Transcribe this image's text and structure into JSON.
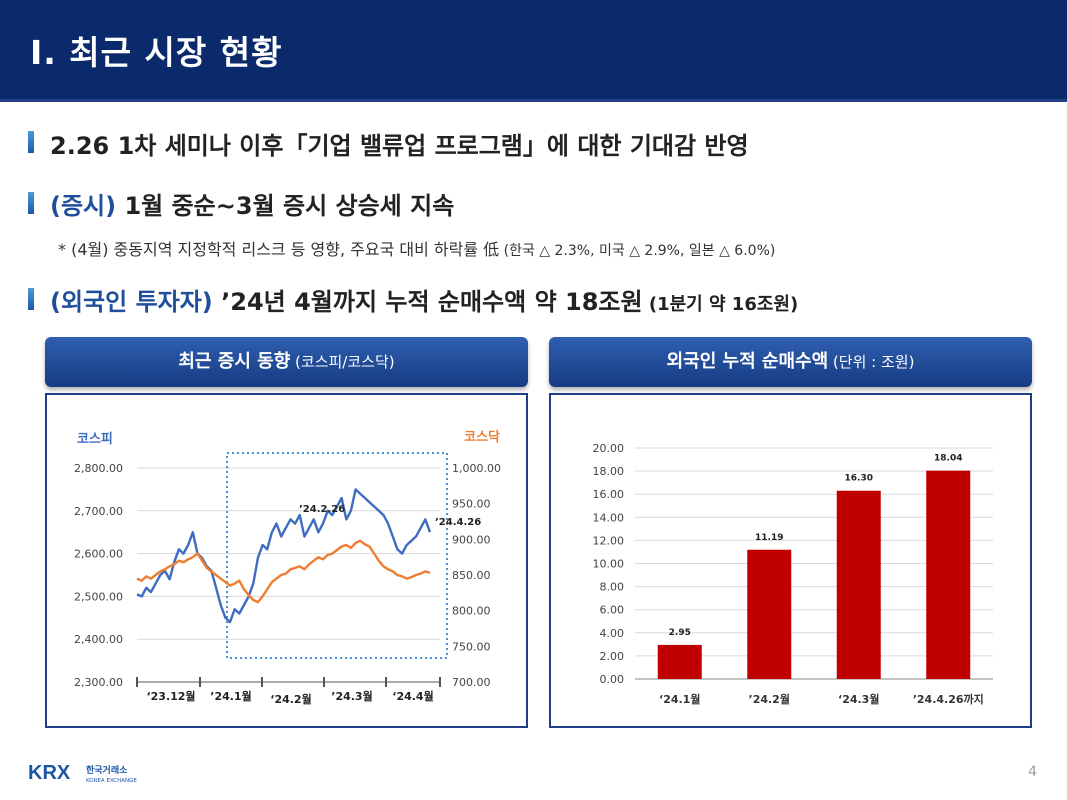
{
  "header": {
    "title": "Ⅰ. 최근 시장 현황"
  },
  "points": {
    "p1": "2.26 1차 세미나 이후「기업 밸류업 프로그램」에 대한 기대감 반영",
    "p2_hl": "(증시)",
    "p2_rest": " 1월 중순~3월 증시 상승세 지속",
    "note_main": "* (4월) 중동지역 지정학적 리스크 등 영향, 주요국 대비 하락률 低",
    "note_detail": " (한국 △ 2.3%, 미국 △ 2.9%, 일본 △ 6.0%)",
    "p3_hl": "(외국인 투자자)",
    "p3_rest": " ’24년 4월까지 누적 순매수액 약 18조원",
    "p3_small": " (1분기 약 16조원)"
  },
  "left_panel": {
    "title": "최근 증시 동향",
    "subtitle": " (코스피/코스닥)"
  },
  "right_panel": {
    "title": "외국인 누적 순매수액",
    "subtitle": " (단위 : 조원)"
  },
  "colors": {
    "kospi": "#3d6cc0",
    "kosdaq": "#ed7d31",
    "bar": "#c00000",
    "header_bg": "#0b2a6b"
  },
  "chart_data": [
    {
      "type": "line",
      "left_axis_label": "코스피",
      "right_axis_label": "코스닥",
      "left_ticks": [
        "2,800.00",
        "2,700.00",
        "2,600.00",
        "2,500.00",
        "2,400.00",
        "2,300.00"
      ],
      "right_ticks": [
        "1,000.00",
        "950.00",
        "900.00",
        "850.00",
        "800.00",
        "750.00",
        "700.00"
      ],
      "ylim_left": [
        2300,
        2800
      ],
      "ylim_right": [
        700,
        1000
      ],
      "x_ticks": [
        "‘23.12월",
        "’24.1월",
        "‘24.2월",
        "’24.3월",
        "‘24.4월"
      ],
      "annotations": [
        "’24.2.26",
        "’24.4.26"
      ],
      "series": [
        {
          "name": "코스피",
          "axis": "left",
          "values": [
            2505,
            2500,
            2520,
            2510,
            2530,
            2550,
            2560,
            2540,
            2580,
            2610,
            2600,
            2620,
            2650,
            2600,
            2590,
            2570,
            2560,
            2520,
            2480,
            2450,
            2440,
            2470,
            2460,
            2480,
            2500,
            2530,
            2590,
            2620,
            2610,
            2650,
            2670,
            2640,
            2660,
            2680,
            2670,
            2690,
            2640,
            2660,
            2680,
            2650,
            2670,
            2700,
            2690,
            2710,
            2730,
            2680,
            2700,
            2750,
            2740,
            2730,
            2720,
            2710,
            2700,
            2690,
            2670,
            2640,
            2610,
            2600,
            2620,
            2630,
            2640,
            2660,
            2680,
            2650
          ]
        },
        {
          "name": "코스닥",
          "axis": "right",
          "values": [
            845,
            842,
            848,
            845,
            850,
            855,
            858,
            862,
            865,
            870,
            868,
            872,
            875,
            880,
            870,
            860,
            855,
            850,
            845,
            840,
            835,
            838,
            842,
            830,
            822,
            815,
            812,
            820,
            830,
            840,
            845,
            850,
            852,
            858,
            860,
            862,
            858,
            865,
            870,
            875,
            872,
            878,
            880,
            885,
            890,
            892,
            888,
            895,
            898,
            893,
            890,
            880,
            870,
            862,
            858,
            855,
            850,
            848,
            845,
            847,
            850,
            852,
            855,
            853
          ]
        }
      ]
    },
    {
      "type": "bar",
      "categories": [
        "‘24.1월",
        "’24.2월",
        "‘24.3월",
        "’24.4.26까지"
      ],
      "values": [
        2.95,
        11.19,
        16.3,
        18.04
      ],
      "value_labels": [
        "2.95",
        "11.19",
        "16.30",
        "18.04"
      ],
      "y_ticks": [
        "20.00",
        "18.00",
        "16.00",
        "14.00",
        "12.00",
        "10.00",
        "8.00",
        "6.00",
        "4.00",
        "2.00",
        "0.00"
      ],
      "ylim": [
        0,
        20
      ]
    }
  ],
  "footer": {
    "logo_text": "KRX",
    "logo_kr": "한국거래소",
    "logo_en": "KOREA EXCHANGE",
    "page": "4"
  }
}
